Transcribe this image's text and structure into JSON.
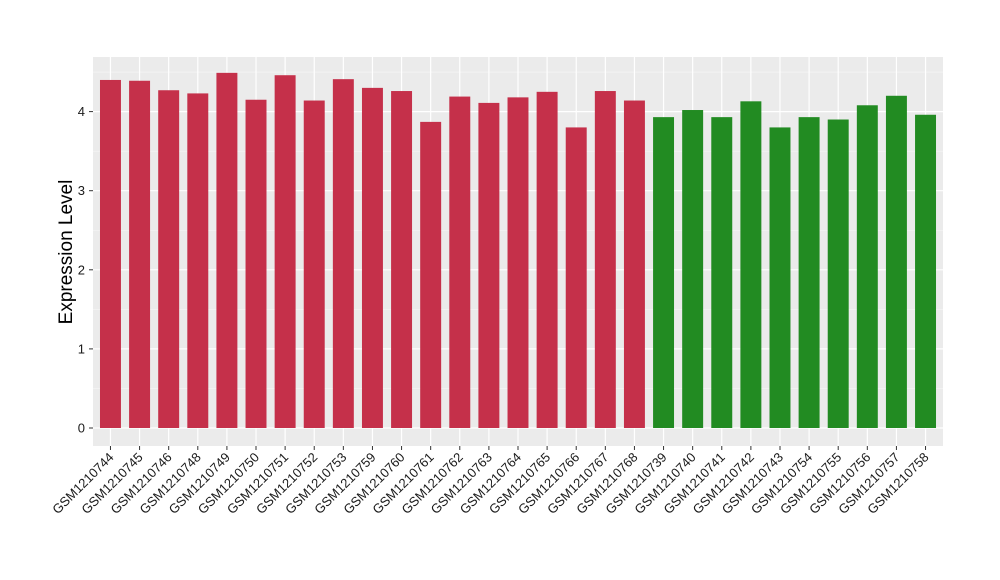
{
  "chart_data": {
    "type": "bar",
    "ylabel": "Expression Level",
    "xlabel": "",
    "title": "",
    "ylim": [
      0,
      4.6
    ],
    "yticks": [
      0,
      1,
      2,
      3,
      4
    ],
    "grid": true,
    "legend": "none",
    "colors": {
      "group1": "#c5304a",
      "group2": "#228b22",
      "panel": "#ebebeb",
      "gridline": "#ffffff"
    },
    "categories": [
      "GSM1210744",
      "GSM1210745",
      "GSM1210746",
      "GSM1210748",
      "GSM1210749",
      "GSM1210750",
      "GSM1210751",
      "GSM1210752",
      "GSM1210753",
      "GSM1210759",
      "GSM1210760",
      "GSM1210761",
      "GSM1210762",
      "GSM1210763",
      "GSM1210764",
      "GSM1210765",
      "GSM1210766",
      "GSM1210767",
      "GSM1210768",
      "GSM1210739",
      "GSM1210740",
      "GSM1210741",
      "GSM1210742",
      "GSM1210743",
      "GSM1210754",
      "GSM1210755",
      "GSM1210756",
      "GSM1210757",
      "GSM1210758"
    ],
    "values": [
      4.4,
      4.39,
      4.27,
      4.23,
      4.49,
      4.15,
      4.46,
      4.14,
      4.41,
      4.3,
      4.26,
      3.87,
      4.19,
      4.11,
      4.18,
      4.25,
      3.8,
      4.26,
      4.14,
      3.93,
      4.02,
      3.93,
      4.13,
      3.8,
      3.93,
      3.9,
      4.08,
      4.2,
      3.96
    ],
    "groups": [
      "group1",
      "group1",
      "group1",
      "group1",
      "group1",
      "group1",
      "group1",
      "group1",
      "group1",
      "group1",
      "group1",
      "group1",
      "group1",
      "group1",
      "group1",
      "group1",
      "group1",
      "group1",
      "group1",
      "group2",
      "group2",
      "group2",
      "group2",
      "group2",
      "group2",
      "group2",
      "group2",
      "group2",
      "group2"
    ]
  }
}
